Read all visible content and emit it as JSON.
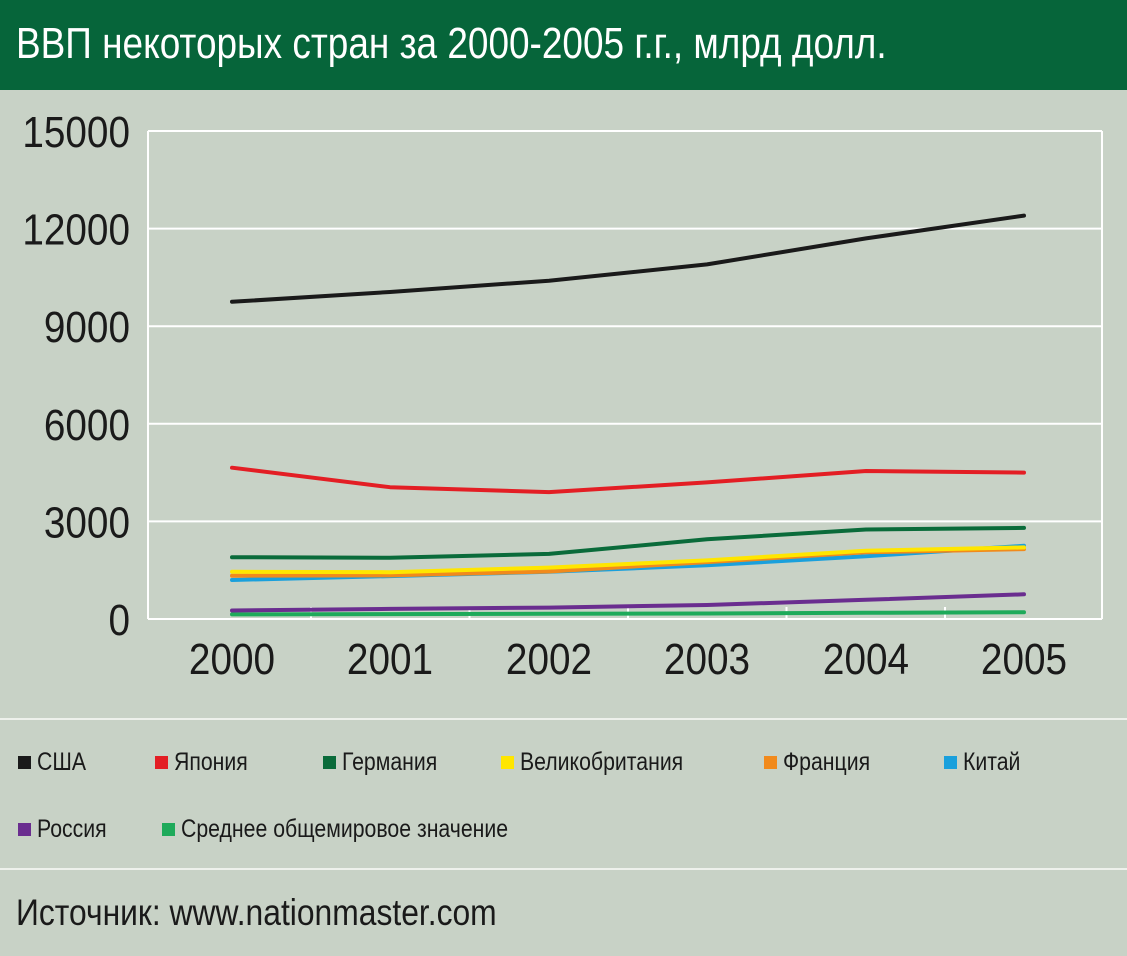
{
  "title": "ВВП некоторых стран за 2000-2005 г.г., млрд долл.",
  "source": "Источник: www.nationmaster.com",
  "colors": {
    "header_bg": "#06653a",
    "page_bg": "#c8d2c6",
    "grid": "#ffffff",
    "text": "#1a1a1a"
  },
  "chart_data": {
    "type": "line",
    "title": "ВВП некоторых стран за 2000-2005 г.г., млрд долл.",
    "x": [
      "2000",
      "2001",
      "2002",
      "2003",
      "2004",
      "2005"
    ],
    "ylim": [
      0,
      15000
    ],
    "yticks": [
      "0",
      "3000",
      "6000",
      "9000",
      "12000",
      "15000"
    ],
    "grid": true,
    "legend_position": "bottom",
    "series": [
      {
        "name": "США",
        "color": "#1a1a1a",
        "values": [
          9750,
          10050,
          10400,
          10900,
          11700,
          12400
        ]
      },
      {
        "name": "Япония",
        "color": "#e31e24",
        "values": [
          4650,
          4050,
          3900,
          4200,
          4550,
          4500
        ]
      },
      {
        "name": "Германия",
        "color": "#0a6b3a",
        "values": [
          1900,
          1880,
          2000,
          2450,
          2750,
          2800
        ]
      },
      {
        "name": "Великобритания",
        "color": "#ffe600",
        "values": [
          1450,
          1440,
          1580,
          1800,
          2100,
          2200
        ]
      },
      {
        "name": "Франция",
        "color": "#f18a1c",
        "values": [
          1330,
          1340,
          1460,
          1750,
          2050,
          2150
        ]
      },
      {
        "name": "Китай",
        "color": "#1aa0dc",
        "values": [
          1200,
          1320,
          1450,
          1650,
          1930,
          2250
        ]
      },
      {
        "name": "Россия",
        "color": "#6a2d8f",
        "values": [
          260,
          310,
          350,
          430,
          590,
          760
        ]
      },
      {
        "name": "Среднее общемировое значение",
        "color": "#1eaa5a",
        "values": [
          140,
          150,
          160,
          170,
          190,
          210
        ]
      }
    ]
  }
}
